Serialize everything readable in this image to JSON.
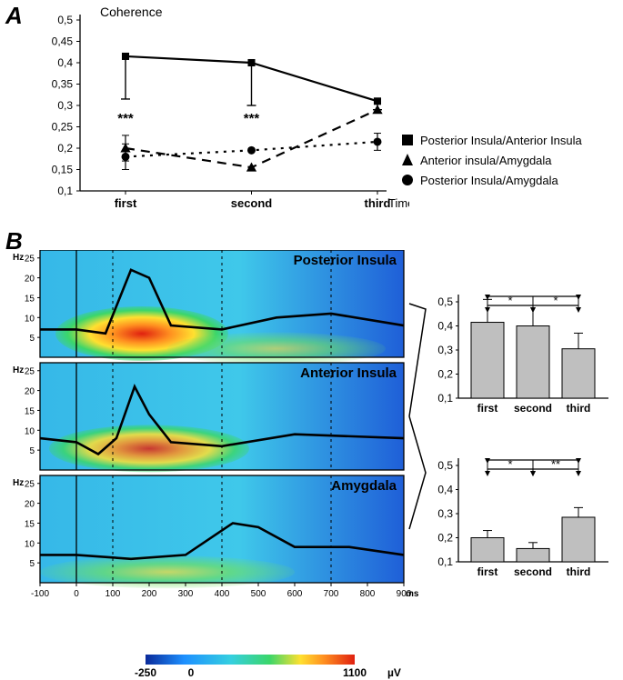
{
  "panelA": {
    "label": "A",
    "ylabel": "Coherence",
    "xlabel": "Time",
    "xcats": [
      "first",
      "second",
      "third"
    ],
    "yticks": [
      0.1,
      0.15,
      0.2,
      0.25,
      0.3,
      0.35,
      0.4,
      0.45,
      0.5
    ],
    "ytick_labels": [
      "0,1",
      "0,15",
      "0,2",
      "0,25",
      "0,3",
      "0,35",
      "0,4",
      "0,45",
      "0,5"
    ],
    "ylim": [
      0.1,
      0.5
    ],
    "significance": [
      "***",
      "***",
      ""
    ],
    "series": [
      {
        "name": "Posterior Insula/Anterior Insula",
        "marker": "square",
        "dash": "solid",
        "values": [
          0.415,
          0.4,
          0.31
        ],
        "err": [
          0.1,
          0.1,
          0.02
        ],
        "err_dir": "down"
      },
      {
        "name": "Anterior insula/Amygdala",
        "marker": "triangle",
        "dash": "dashed",
        "values": [
          0.2,
          0.155,
          0.29
        ],
        "err": [
          0.03,
          0.0,
          0.0
        ],
        "err_dir": "down"
      },
      {
        "name": "Posterior Insula/Amygdala",
        "marker": "circle",
        "dash": "dotted",
        "values": [
          0.18,
          0.195,
          0.215
        ],
        "err": [
          0.03,
          0.0,
          0.02
        ],
        "err_dir": "both"
      }
    ],
    "colors": {
      "line": "#000000",
      "axis": "#000000",
      "text": "#000000"
    },
    "line_width": 2.2,
    "marker_size": 9,
    "title_fontsize": 14,
    "tick_fontsize": 12,
    "legend_fontsize": 13
  },
  "panelB": {
    "label": "B",
    "spectrograms": [
      {
        "title": "Posterior Insula",
        "y": "Hz",
        "yticks": [
          5,
          10,
          15,
          20,
          25
        ]
      },
      {
        "title": "Anterior Insula",
        "y": "Hz",
        "yticks": [
          5,
          10,
          15,
          20,
          25
        ]
      },
      {
        "title": "Amygdala",
        "y": "Hz",
        "yticks": [
          5,
          10,
          15,
          20,
          25
        ]
      }
    ],
    "xticks": [
      -100,
      0,
      100,
      200,
      300,
      400,
      500,
      600,
      700,
      800,
      900
    ],
    "xlabel": "ms",
    "colormap": {
      "min": -250,
      "zero": 0,
      "max": 1100,
      "unit": "µV",
      "stops": [
        {
          "v": -250,
          "c": "#0a2a9a"
        },
        {
          "v": 0,
          "c": "#1e90ff"
        },
        {
          "v": 300,
          "c": "#35cfe0"
        },
        {
          "v": 550,
          "c": "#3bd66a"
        },
        {
          "v": 750,
          "c": "#ffe030"
        },
        {
          "v": 900,
          "c": "#ff9020"
        },
        {
          "v": 1100,
          "c": "#e02010"
        }
      ]
    },
    "vline_times": [
      0,
      100,
      400,
      700
    ],
    "barcharts": [
      {
        "pair": "Posterior Insula/Anterior Insula",
        "cats": [
          "first",
          "second",
          "third"
        ],
        "values": [
          0.415,
          0.4,
          0.305
        ],
        "err": [
          0.095,
          0.085,
          0.065
        ],
        "yticks": [
          0.1,
          0.2,
          0.3,
          0.4,
          0.5
        ],
        "ytick_labels": [
          "0,1",
          "0,2",
          "0,3",
          "0,4",
          "0,5"
        ],
        "ylim": [
          0.1,
          0.5
        ],
        "sigs": [
          {
            "a": 0,
            "b": 1,
            "label": "*"
          },
          {
            "a": 1,
            "b": 2,
            "label": "*"
          }
        ]
      },
      {
        "pair": "Anterior insula/Amygdala",
        "cats": [
          "first",
          "second",
          "third"
        ],
        "values": [
          0.2,
          0.155,
          0.285
        ],
        "err": [
          0.03,
          0.025,
          0.04
        ],
        "yticks": [
          0.1,
          0.2,
          0.3,
          0.4,
          0.5
        ],
        "ytick_labels": [
          "0,1",
          "0,2",
          "0,3",
          "0,4",
          "0,5"
        ],
        "ylim": [
          0.1,
          0.5
        ],
        "sigs": [
          {
            "a": 0,
            "b": 1,
            "label": "*"
          },
          {
            "a": 1,
            "b": 2,
            "label": "**"
          }
        ]
      }
    ],
    "bar_color": "#bfbfbf",
    "bar_border": "#000000"
  }
}
